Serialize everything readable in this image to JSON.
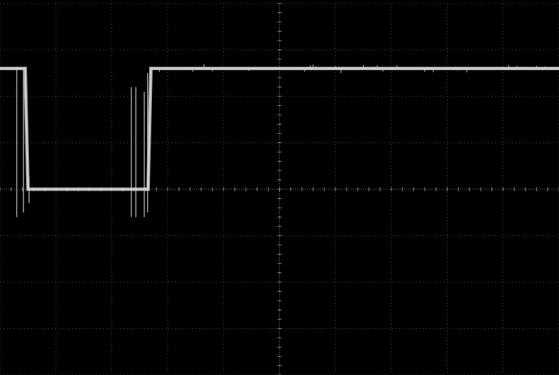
{
  "chart_data": {
    "type": "line",
    "title": "",
    "xlabel": "",
    "ylabel": "",
    "grid": true,
    "divisions": {
      "horizontal": 10,
      "vertical": 8
    },
    "xlim": [
      -5,
      5
    ],
    "ylim": [
      -4,
      4
    ],
    "series": [
      {
        "name": "",
        "points": [
          [
            -5.0,
            2.6
          ],
          [
            -4.6,
            2.6
          ],
          [
            -4.55,
            2.6
          ],
          [
            -4.5,
            0.0
          ],
          [
            -2.6,
            0.0
          ],
          [
            -2.35,
            0.0
          ],
          [
            -2.3,
            2.6
          ],
          [
            5.0,
            2.6
          ]
        ]
      }
    ],
    "transients": [
      {
        "x": -4.7,
        "y_from": 2.6,
        "y_to": -0.6
      },
      {
        "x": -4.58,
        "y_from": 2.6,
        "y_to": -0.5
      },
      {
        "x": -4.48,
        "y_from": 0.25,
        "y_to": -0.3
      },
      {
        "x": -2.65,
        "y_from": 2.2,
        "y_to": -0.6
      },
      {
        "x": -2.57,
        "y_from": 2.2,
        "y_to": -0.6
      },
      {
        "x": -2.42,
        "y_from": 2.1,
        "y_to": -0.6
      },
      {
        "x": -2.36,
        "y_from": 2.5,
        "y_to": -0.5
      }
    ],
    "noise_amplitude": 0.05
  },
  "colors": {
    "background": "#000000",
    "grid": "#5a5a5a",
    "axis": "#8a8a8a",
    "trace": "#c8c8c8",
    "transient": "#b0b0b0"
  }
}
